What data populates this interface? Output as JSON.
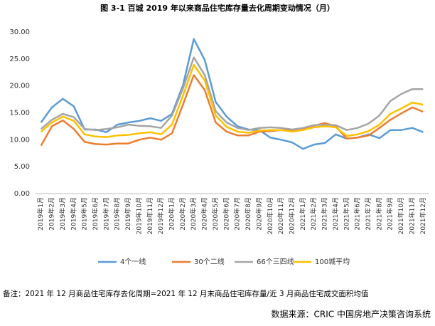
{
  "chart_data": {
    "type": "line",
    "title": "图 3-1 百城 2019 年以来商品住宅库存量去化周期变动情况（月）",
    "note": "备注：2021 年 12 月商品住宅库存去化周期=2021 年 12 月末商品住宅库存量/近 3 月商品住宅成交面积均值",
    "source": "数据来源：CRIC 中国房地产决策咨询系统",
    "categories": [
      "2019年1月",
      "2019年2月",
      "2019年3月",
      "2019年4月",
      "2019年5月",
      "2019年6月",
      "2019年7月",
      "2019年8月",
      "2019年9月",
      "2019年10月",
      "2019年11月",
      "2019年12月",
      "2020年1月",
      "2020年2月",
      "2020年3月",
      "2020年4月",
      "2020年5月",
      "2020年6月",
      "2020年7月",
      "2020年8月",
      "2020年9月",
      "2020年10月",
      "2020年11月",
      "2020年12月",
      "2021年1月",
      "2021年2月",
      "2021年3月",
      "2021年4月",
      "2021年5月",
      "2021年6月",
      "2021年7月",
      "2021年8月",
      "2021年9月",
      "2021年10月",
      "2021年11月",
      "2021年12月"
    ],
    "series": [
      {
        "name": "4个一线",
        "color": "#5b9bd5",
        "values": [
          13.2,
          16.0,
          17.6,
          16.2,
          11.9,
          11.9,
          11.4,
          12.8,
          13.2,
          13.5,
          14.0,
          13.5,
          14.8,
          20.1,
          28.7,
          24.8,
          17.0,
          14.3,
          12.5,
          11.9,
          11.8,
          10.4,
          10.0,
          9.5,
          8.3,
          9.1,
          9.4,
          11.0,
          10.2,
          10.4,
          11.0,
          10.3,
          11.8,
          11.8,
          12.2,
          11.4
        ]
      },
      {
        "name": "30个二线",
        "color": "#ed7d31",
        "values": [
          8.9,
          12.5,
          13.6,
          12.0,
          9.6,
          9.2,
          9.1,
          9.3,
          9.3,
          10.0,
          10.4,
          10.0,
          11.2,
          16.5,
          22.0,
          19.2,
          13.2,
          11.5,
          10.8,
          10.8,
          11.5,
          11.6,
          11.8,
          11.8,
          12.1,
          12.6,
          13.1,
          12.5,
          10.2,
          10.4,
          10.8,
          12.2,
          13.7,
          14.9,
          16.0,
          15.2
        ]
      },
      {
        "name": "66个三四线",
        "color": "#a5a5a5",
        "values": [
          12.0,
          13.7,
          14.8,
          14.2,
          12.0,
          11.8,
          12.0,
          12.3,
          12.8,
          12.6,
          12.5,
          12.2,
          14.5,
          19.5,
          25.3,
          22.0,
          15.3,
          13.2,
          12.2,
          11.8,
          12.2,
          12.3,
          12.2,
          11.9,
          12.2,
          12.7,
          12.8,
          12.7,
          11.8,
          12.2,
          13.0,
          14.5,
          17.2,
          18.5,
          19.4,
          19.4
        ]
      },
      {
        "name": "100城平均",
        "color": "#ffc000",
        "values": [
          11.5,
          13.2,
          14.3,
          13.5,
          11.0,
          10.6,
          10.5,
          10.8,
          10.9,
          11.2,
          11.4,
          11.0,
          12.8,
          18.2,
          23.9,
          21.0,
          14.5,
          12.4,
          11.5,
          11.3,
          11.7,
          11.8,
          11.8,
          11.5,
          11.8,
          12.3,
          12.5,
          12.3,
          10.7,
          11.0,
          11.6,
          12.8,
          14.8,
          15.8,
          16.9,
          16.5
        ]
      }
    ],
    "ylim": [
      0,
      30
    ],
    "yticks": [
      {
        "value": 0,
        "label": "0.00"
      },
      {
        "value": 5,
        "label": "5.00"
      },
      {
        "value": 10,
        "label": "10.00"
      },
      {
        "value": 15,
        "label": "15.00"
      },
      {
        "value": 20,
        "label": "20.00"
      },
      {
        "value": 25,
        "label": "25.00"
      },
      {
        "value": 30,
        "label": "30.00"
      }
    ],
    "grid": false,
    "legend": "bottom"
  }
}
